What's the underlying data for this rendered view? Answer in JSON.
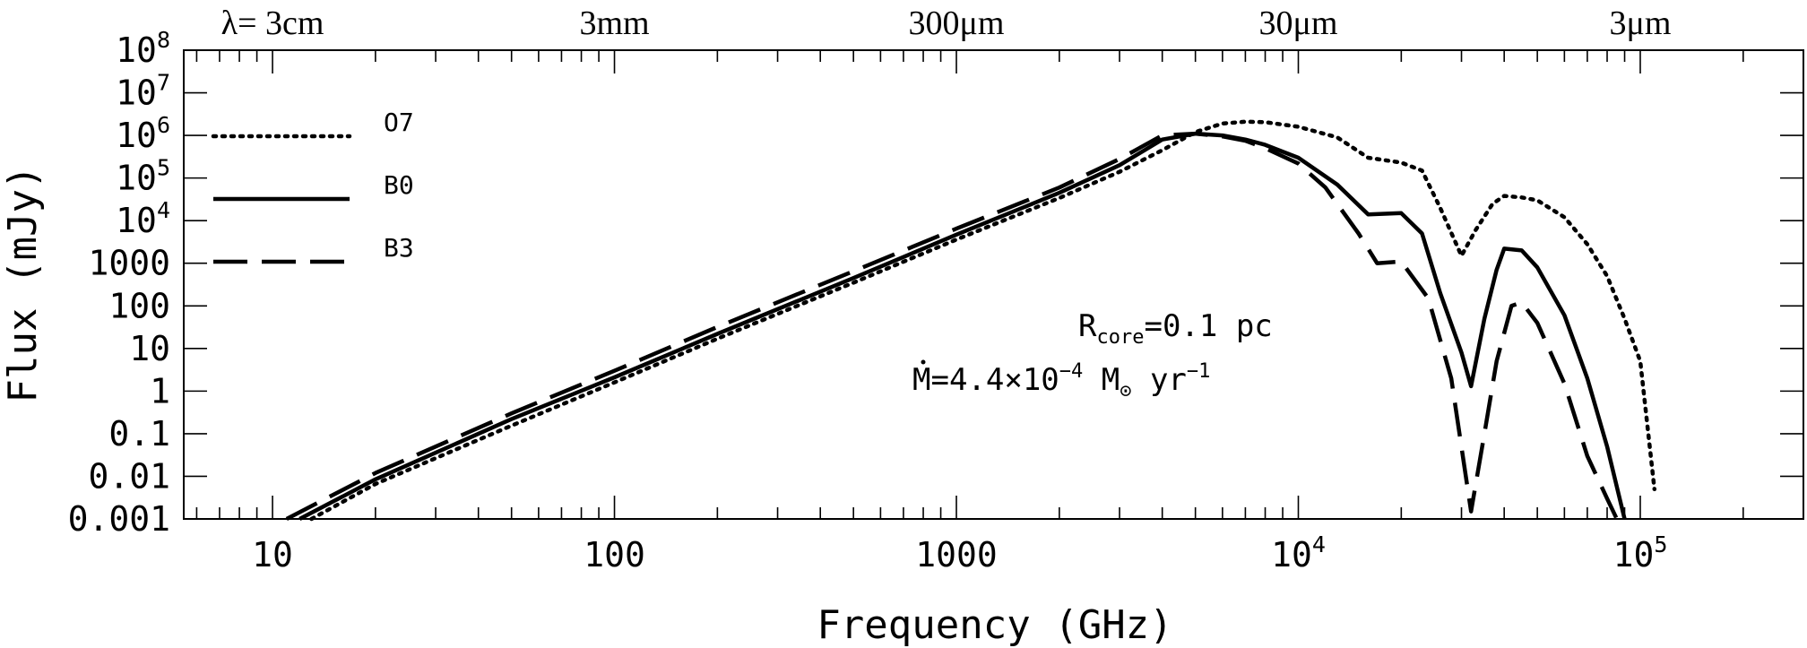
{
  "chart_data": {
    "type": "line",
    "xscale": "log",
    "yscale": "log",
    "xlim": [
      5.5,
      300000
    ],
    "ylim": [
      0.001,
      100000000
    ],
    "xlabel": "Frequency (GHz)",
    "ylabel": "Flux (mJy)",
    "x_tick_labels": [
      {
        "value": 10,
        "base": "10",
        "exp": ""
      },
      {
        "value": 100,
        "base": "100",
        "exp": ""
      },
      {
        "value": 1000,
        "base": "1000",
        "exp": ""
      },
      {
        "value": 10000,
        "base": "10",
        "exp": "4"
      },
      {
        "value": 100000,
        "base": "10",
        "exp": "5"
      }
    ],
    "y_tick_labels": [
      {
        "value": 100000000,
        "base": "10",
        "exp": "8"
      },
      {
        "value": 10000000,
        "base": "10",
        "exp": "7"
      },
      {
        "value": 1000000,
        "base": "10",
        "exp": "6"
      },
      {
        "value": 100000,
        "base": "10",
        "exp": "5"
      },
      {
        "value": 10000,
        "base": "10",
        "exp": "4"
      },
      {
        "value": 1000,
        "base": "1000",
        "exp": ""
      },
      {
        "value": 100,
        "base": "100",
        "exp": ""
      },
      {
        "value": 10,
        "base": "10",
        "exp": ""
      },
      {
        "value": 1,
        "base": "1",
        "exp": ""
      },
      {
        "value": 0.1,
        "base": "0.1",
        "exp": ""
      },
      {
        "value": 0.01,
        "base": "0.01",
        "exp": ""
      },
      {
        "value": 0.001,
        "base": "0.001",
        "exp": ""
      }
    ],
    "top_axis_labels": [
      {
        "value": 10,
        "text": "λ= 3cm"
      },
      {
        "value": 100,
        "text": "3mm"
      },
      {
        "value": 1000,
        "text": "300μm"
      },
      {
        "value": 10000,
        "text": "30μm"
      },
      {
        "value": 100000,
        "text": "3μm"
      }
    ],
    "annotations": {
      "rcore": {
        "main": "R",
        "sub": "core",
        "rest": "=0.1 pc"
      },
      "mdot": {
        "main": "M",
        "rest": "=4.4×10",
        "exp": "−4",
        "unit": " M",
        "sun": "⊙",
        "yr": " yr",
        "yr_exp": "−1"
      }
    },
    "legend_placement": "top-left",
    "series": [
      {
        "name": "O7",
        "style": "dotted",
        "x": [
          13,
          20,
          50,
          100,
          200,
          500,
          1000,
          2000,
          3000,
          4000,
          5000,
          6000,
          7000,
          8000,
          10000,
          13000,
          16000,
          20000,
          23000,
          26000,
          30000,
          33000,
          37000,
          40000,
          45000,
          50000,
          60000,
          70000,
          80000,
          90000,
          100000,
          110000
        ],
        "y": [
          0.001,
          0.0066,
          0.155,
          1.6,
          17,
          350,
          3600,
          34000,
          140000,
          450000,
          1200000,
          1900000,
          2100000,
          2050000,
          1600000,
          900000,
          300000,
          230000,
          150000,
          20000,
          1500,
          6000,
          25000,
          38000,
          35000,
          30000,
          12000,
          2800,
          500,
          50,
          5,
          0.005
        ]
      },
      {
        "name": "B0",
        "style": "solid",
        "x": [
          12,
          20,
          50,
          100,
          200,
          500,
          1000,
          2000,
          3000,
          4000,
          5000,
          6000,
          7000,
          8000,
          10000,
          13000,
          16000,
          20000,
          23000,
          26000,
          30000,
          32000,
          35000,
          38000,
          40000,
          45000,
          50000,
          60000,
          70000,
          80000,
          90000
        ],
        "y": [
          0.001,
          0.0085,
          0.22,
          2.1,
          22,
          450,
          4700,
          45000,
          200000,
          800000,
          1100000,
          1000000,
          800000,
          600000,
          300000,
          70000,
          14000,
          15000,
          5000,
          200,
          8,
          1.3,
          50,
          700,
          2200,
          2000,
          800,
          60,
          2,
          0.05,
          0.001
        ]
      },
      {
        "name": "B3",
        "style": "dashed",
        "x": [
          11,
          20,
          50,
          100,
          200,
          500,
          1000,
          2000,
          3000,
          4000,
          5000,
          6000,
          7000,
          8000,
          10000,
          12000,
          15000,
          17000,
          20000,
          24000,
          28000,
          32000,
          35000,
          38000,
          42000,
          45000,
          50000,
          60000,
          70000,
          80000,
          88000
        ],
        "y": [
          0.001,
          0.012,
          0.3,
          3.0,
          32,
          650,
          6500,
          60000,
          280000,
          1000000,
          1100000,
          950000,
          750000,
          500000,
          220000,
          60000,
          5000,
          1000,
          1100,
          150,
          2,
          0.0015,
          0.1,
          5,
          100,
          120,
          40,
          1.5,
          0.03,
          0.003,
          0.0006
        ]
      }
    ]
  }
}
